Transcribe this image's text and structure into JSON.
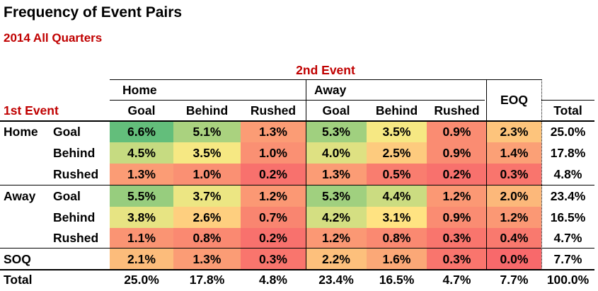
{
  "title": "Frequency of Event Pairs",
  "subtitle": "2014 All Quarters",
  "chart_data": {
    "type": "heatmap",
    "title": "Frequency of Event Pairs",
    "subtitle": "2014 All Quarters",
    "column_axis_label": "2nd Event",
    "row_axis_label": "1st Event",
    "column_groups": [
      "Home",
      "Away",
      "EOQ"
    ],
    "columns": [
      "Goal",
      "Behind",
      "Rushed",
      "Goal",
      "Behind",
      "Rushed",
      "EOQ"
    ],
    "row_groups": [
      "Home",
      "Away",
      "SOQ"
    ],
    "rows": [
      "Goal",
      "Behind",
      "Rushed",
      "Goal",
      "Behind",
      "Rushed",
      "SOQ"
    ],
    "values": [
      [
        "6.6%",
        "5.1%",
        "1.3%",
        "5.3%",
        "3.5%",
        "0.9%",
        "2.3%"
      ],
      [
        "4.5%",
        "3.5%",
        "1.0%",
        "4.0%",
        "2.5%",
        "0.9%",
        "1.4%"
      ],
      [
        "1.3%",
        "1.0%",
        "0.2%",
        "1.3%",
        "0.5%",
        "0.2%",
        "0.3%"
      ],
      [
        "5.5%",
        "3.7%",
        "1.2%",
        "5.3%",
        "4.4%",
        "1.2%",
        "2.0%"
      ],
      [
        "3.8%",
        "2.6%",
        "0.7%",
        "4.2%",
        "3.1%",
        "0.9%",
        "1.2%"
      ],
      [
        "1.1%",
        "0.8%",
        "0.2%",
        "1.2%",
        "0.8%",
        "0.3%",
        "0.4%"
      ],
      [
        "2.1%",
        "1.3%",
        "0.3%",
        "2.2%",
        "1.6%",
        "0.3%",
        "0.0%"
      ]
    ],
    "total_label": "Total",
    "row_totals": [
      "25.0%",
      "17.8%",
      "4.8%",
      "23.4%",
      "16.5%",
      "4.7%",
      "7.7%"
    ],
    "column_totals": [
      "25.0%",
      "17.8%",
      "4.8%",
      "23.4%",
      "16.5%",
      "4.7%",
      "7.7%"
    ],
    "grand_total": "100.0%",
    "color_scale": {
      "low": "#f8696b",
      "mid": "#ffeb84",
      "high": "#63be7b"
    }
  }
}
